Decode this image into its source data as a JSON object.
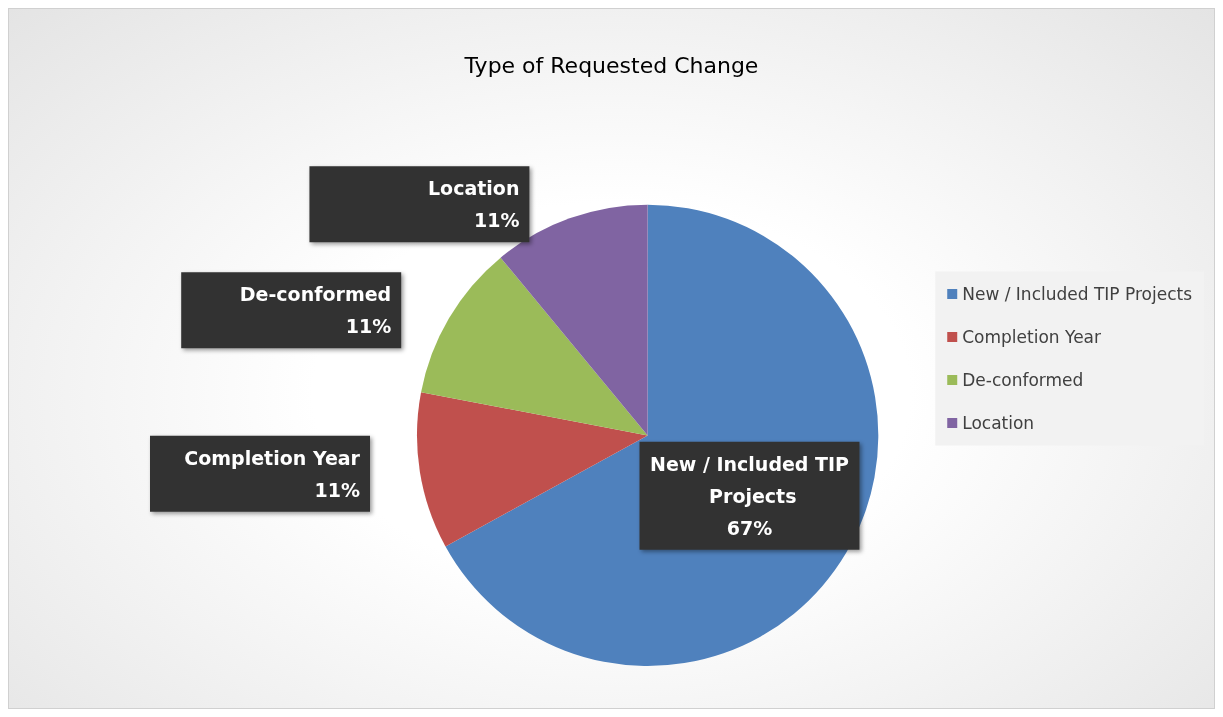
{
  "chart_data": {
    "type": "pie",
    "title": "Type of Requested Change",
    "categories": [
      "New / Included TIP Projects",
      "Completion Year",
      "De-conformed",
      "Location"
    ],
    "values": [
      67,
      11,
      11,
      11
    ],
    "value_labels": [
      "67%",
      "11%",
      "11%",
      "11%"
    ],
    "colors": [
      "#4f81bd",
      "#c0504d",
      "#9bbb59",
      "#8064a2"
    ],
    "legend": "right"
  }
}
